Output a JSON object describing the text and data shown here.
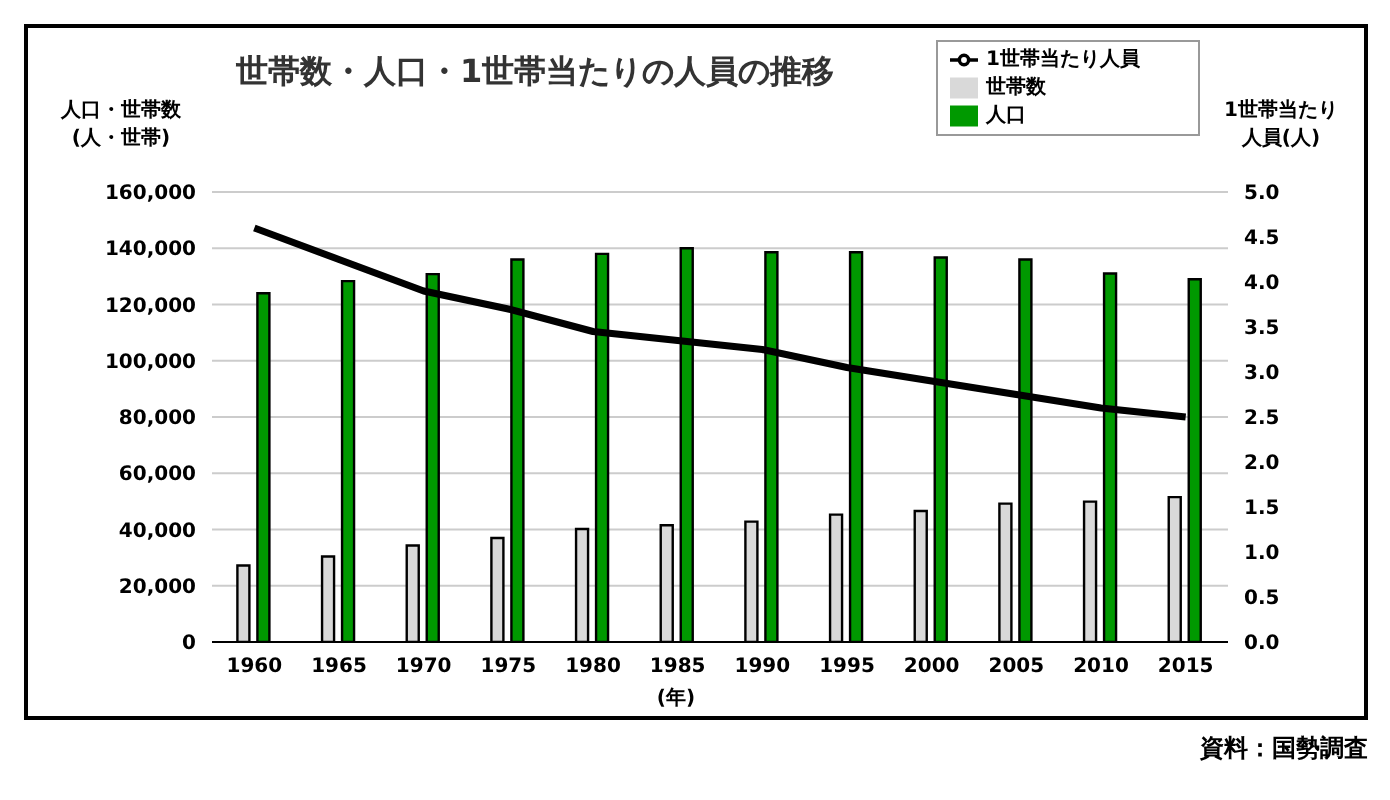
{
  "chart_data": {
    "type": "bar",
    "title": "世帯数・人口・1世帯当たりの人員の推移",
    "ylabel": "人口・世帯数(人・世帯)",
    "y2label": "1世帯当たり人員(人)",
    "xlabel": "(年)",
    "annotations": [
      "資料：国勢調査"
    ],
    "categories": [
      "1960",
      "1965",
      "1970",
      "1975",
      "1980",
      "1985",
      "1990",
      "1995",
      "2000",
      "2005",
      "2010",
      "2015"
    ],
    "series": [
      {
        "name": "世帯数",
        "color": "#d9d9d9",
        "values": [
          27200,
          30400,
          34300,
          37000,
          40200,
          41500,
          42800,
          45300,
          46600,
          49200,
          49900,
          51500
        ]
      },
      {
        "name": "人口",
        "color": "#009900",
        "values": [
          124000,
          128300,
          130800,
          136000,
          138000,
          140000,
          138600,
          138600,
          136700,
          136000,
          131000,
          129000
        ]
      },
      {
        "name": "1世帯当たり人員",
        "type": "line",
        "axis": "y2",
        "color": "#000000",
        "values": [
          4.6,
          4.25,
          3.9,
          3.7,
          3.45,
          3.35,
          3.25,
          3.05,
          2.9,
          2.75,
          2.6,
          2.5
        ]
      }
    ],
    "ylim": [
      0,
      160000
    ],
    "yticks": [
      {
        "value": 0,
        "label": "0"
      },
      {
        "value": 20000,
        "label": "20,000"
      },
      {
        "value": 40000,
        "label": "40,000"
      },
      {
        "value": 60000,
        "label": "60,000"
      },
      {
        "value": 80000,
        "label": "80,000"
      },
      {
        "value": 100000,
        "label": "100,000"
      },
      {
        "value": 120000,
        "label": "120,000"
      },
      {
        "value": 140000,
        "label": "140,000"
      },
      {
        "value": 160000,
        "label": "160,000"
      }
    ],
    "y2lim": [
      0,
      5
    ],
    "y2ticks": [
      {
        "value": 0,
        "label": "0.0"
      },
      {
        "value": 0.5,
        "label": "0.5"
      },
      {
        "value": 1,
        "label": "1.0"
      },
      {
        "value": 1.5,
        "label": "1.5"
      },
      {
        "value": 2,
        "label": "2.0"
      },
      {
        "value": 2.5,
        "label": "2.5"
      },
      {
        "value": 3,
        "label": "3.0"
      },
      {
        "value": 3.5,
        "label": "3.5"
      },
      {
        "value": 4,
        "label": "4.0"
      },
      {
        "value": 4.5,
        "label": "4.5"
      },
      {
        "value": 5,
        "label": "5.0"
      }
    ],
    "grid": "y",
    "legend": "top right",
    "marker": "none",
    "line_style": "solid"
  }
}
